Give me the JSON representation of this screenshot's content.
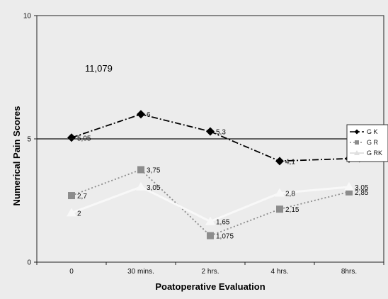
{
  "chart_data": {
    "type": "line",
    "categories": [
      "0",
      "30 mins.",
      "2 hrs.",
      "4 hrs.",
      "8hrs."
    ],
    "ylim": [
      0,
      10
    ],
    "yticks": [
      "0",
      "5",
      "10"
    ],
    "xlabel": "Poatoperative Evaluation",
    "ylabel": "Numerical Pain Scores",
    "annotation": "11,079",
    "reference_line": 5,
    "grid": false,
    "legend_position": "right",
    "series": [
      {
        "name": "G K",
        "values": [
          5.05,
          6,
          5.3,
          4.1,
          4.2
        ],
        "labels": [
          "5,05",
          "6",
          "5,3",
          "4,1",
          "4,2"
        ],
        "color": "#000000",
        "marker": "diamond",
        "dash": "dashdot"
      },
      {
        "name": "G R",
        "values": [
          2.7,
          3.75,
          1.075,
          2.15,
          2.85
        ],
        "labels": [
          "2,7",
          "3,75",
          "1,075",
          "2,15",
          "2,85"
        ],
        "color": "#8c8c8c",
        "marker": "square",
        "dash": "dotted"
      },
      {
        "name": "G RK",
        "values": [
          2,
          3.05,
          1.65,
          2.8,
          3.05
        ],
        "labels": [
          "2",
          "3,05",
          "1,65",
          "2,8",
          "3,05"
        ],
        "color": "#f8f8f8",
        "marker": "triangle",
        "dash": "solid"
      }
    ]
  }
}
